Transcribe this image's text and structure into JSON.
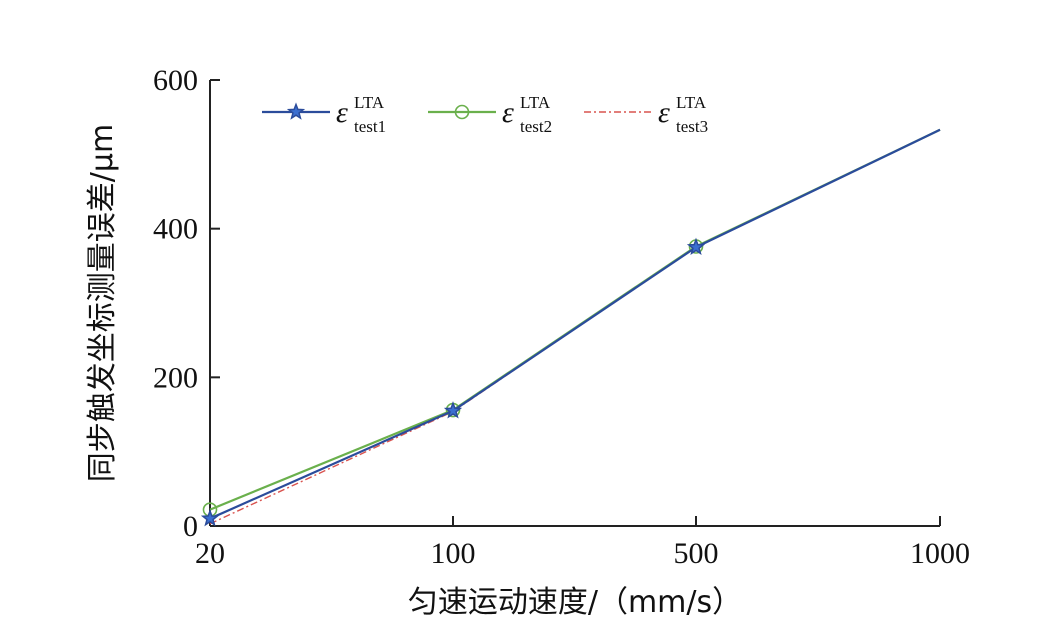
{
  "chart_data": {
    "type": "line",
    "x_categories": [
      "20",
      "100",
      "500",
      "1000"
    ],
    "x": [
      20,
      100,
      500,
      1000
    ],
    "xlabel": "匀速运动速度/（mm/s）",
    "ylabel": "同步触发坐标测量误差/μm",
    "ylim": [
      0,
      600
    ],
    "yticks": [
      "0",
      "200",
      "400",
      "600"
    ],
    "legend_placement": "top-left",
    "grid": false,
    "series": [
      {
        "legend_symbol": "ε",
        "legend_sup": "LTA",
        "legend_sub": "test1",
        "color": "#2B4C9B",
        "marker": "star",
        "line_style": "solid",
        "values": [
          10,
          155,
          375,
          533
        ]
      },
      {
        "legend_symbol": "ε",
        "legend_sup": "LTA",
        "legend_sub": "test2",
        "color": "#6AB04C",
        "marker": "circle",
        "line_style": "solid",
        "values": [
          22,
          156,
          376,
          533
        ]
      },
      {
        "legend_symbol": "ε",
        "legend_sup": "LTA",
        "legend_sub": "test3",
        "color": "#D9534F",
        "marker": "none",
        "line_style": "dash-dot",
        "values": [
          3,
          154,
          376,
          533
        ]
      }
    ]
  }
}
